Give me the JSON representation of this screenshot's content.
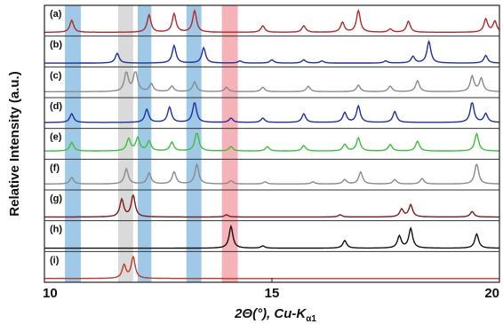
{
  "chart_data": {
    "type": "line",
    "xlabel_prefix": "2Θ(°), Cu-K",
    "xlabel_subscript": "α1",
    "ylabel": "Relative Intensity (a.u.)",
    "xlim": [
      10,
      20
    ],
    "x_ticks": [
      "10",
      "15",
      "20"
    ],
    "highlight_bands": [
      {
        "from": 10.45,
        "to": 10.8,
        "color": "#8fbfe3"
      },
      {
        "from": 11.62,
        "to": 11.95,
        "color": "#d4d4d4"
      },
      {
        "from": 12.05,
        "to": 12.35,
        "color": "#8fbfe3"
      },
      {
        "from": 13.12,
        "to": 13.45,
        "color": "#8fbfe3"
      },
      {
        "from": 13.9,
        "to": 14.25,
        "color": "#f3a5ad"
      }
    ],
    "series": [
      {
        "label": "(a)",
        "color": "#b02a2a",
        "baseline_y": 0.05,
        "peaks": [
          [
            10.6,
            0.55
          ],
          [
            12.3,
            0.8
          ],
          [
            12.85,
            0.85
          ],
          [
            13.3,
            1.0
          ],
          [
            14.8,
            0.3
          ],
          [
            15.7,
            0.3
          ],
          [
            16.55,
            0.45
          ],
          [
            16.9,
            1.0
          ],
          [
            17.6,
            0.15
          ],
          [
            18.0,
            0.5
          ],
          [
            19.7,
            0.6
          ],
          [
            19.9,
            0.5
          ]
        ]
      },
      {
        "label": "(b)",
        "color": "#1e2f9e",
        "baseline_y": 0.05,
        "peaks": [
          [
            11.6,
            0.45
          ],
          [
            12.85,
            0.8
          ],
          [
            13.5,
            0.7
          ],
          [
            14.3,
            0.1
          ],
          [
            15.0,
            0.15
          ],
          [
            15.7,
            0.15
          ],
          [
            16.1,
            0.1
          ],
          [
            17.5,
            0.1
          ],
          [
            18.1,
            0.3
          ],
          [
            18.45,
            1.0
          ],
          [
            19.7,
            0.35
          ]
        ]
      },
      {
        "label": "(c)",
        "color": "#8a8a8a",
        "baseline_y": 0.15,
        "peaks": [
          [
            11.8,
            0.9
          ],
          [
            12.0,
            1.0
          ],
          [
            12.35,
            0.35
          ],
          [
            12.8,
            0.25
          ],
          [
            13.3,
            0.45
          ],
          [
            14.0,
            0.2
          ],
          [
            14.8,
            0.2
          ],
          [
            15.8,
            0.25
          ],
          [
            16.9,
            0.3
          ],
          [
            17.6,
            0.25
          ],
          [
            18.2,
            0.5
          ],
          [
            19.4,
            0.7
          ],
          [
            19.6,
            0.6
          ]
        ]
      },
      {
        "label": "(d)",
        "color": "#1e2f9e",
        "baseline_y": 0.15,
        "peaks": [
          [
            10.6,
            0.4
          ],
          [
            12.25,
            0.6
          ],
          [
            12.75,
            0.7
          ],
          [
            13.3,
            0.95
          ],
          [
            14.1,
            0.2
          ],
          [
            14.8,
            0.2
          ],
          [
            15.7,
            0.4
          ],
          [
            16.6,
            0.45
          ],
          [
            16.9,
            0.75
          ],
          [
            17.7,
            0.5
          ],
          [
            19.4,
            0.95
          ],
          [
            19.7,
            0.4
          ]
        ]
      },
      {
        "label": "(e)",
        "color": "#3dbf3d",
        "baseline_y": 0.25,
        "peaks": [
          [
            10.6,
            0.4
          ],
          [
            11.85,
            0.55
          ],
          [
            12.05,
            0.6
          ],
          [
            12.3,
            0.45
          ],
          [
            12.8,
            0.4
          ],
          [
            13.35,
            0.9
          ],
          [
            14.1,
            0.2
          ],
          [
            14.9,
            0.2
          ],
          [
            15.7,
            0.25
          ],
          [
            16.6,
            0.3
          ],
          [
            16.9,
            0.6
          ],
          [
            17.6,
            0.3
          ],
          [
            18.2,
            0.45
          ],
          [
            19.5,
            0.8
          ]
        ]
      },
      {
        "label": "(f)",
        "color": "#8a8a8a",
        "baseline_y": 0.15,
        "peaks": [
          [
            10.6,
            0.3
          ],
          [
            11.8,
            0.7
          ],
          [
            12.3,
            0.5
          ],
          [
            12.85,
            0.55
          ],
          [
            13.35,
            0.9
          ],
          [
            14.1,
            0.15
          ],
          [
            14.85,
            0.1
          ],
          [
            15.9,
            0.1
          ],
          [
            16.6,
            0.2
          ],
          [
            16.95,
            0.55
          ],
          [
            17.7,
            0.2
          ],
          [
            18.3,
            0.25
          ],
          [
            19.5,
            0.95
          ]
        ]
      },
      {
        "label": "(g)",
        "color": "#7a1a1a",
        "baseline_y": 0.05,
        "peaks": [
          [
            11.7,
            0.8
          ],
          [
            11.95,
            1.0
          ],
          [
            14.0,
            0.1
          ],
          [
            16.5,
            0.1
          ],
          [
            17.85,
            0.35
          ],
          [
            18.05,
            0.55
          ],
          [
            19.4,
            0.25
          ]
        ]
      },
      {
        "label": "(h)",
        "color": "#111111",
        "baseline_y": 0.03,
        "peaks": [
          [
            14.1,
            1.0
          ],
          [
            14.8,
            0.1
          ],
          [
            16.6,
            0.35
          ],
          [
            17.8,
            0.55
          ],
          [
            18.05,
            0.9
          ],
          [
            19.5,
            0.65
          ]
        ]
      },
      {
        "label": "(i)",
        "color": "#c0392b",
        "baseline_y": 0.05,
        "peaks": [
          [
            11.75,
            0.6
          ],
          [
            11.95,
            1.0
          ]
        ]
      }
    ]
  }
}
